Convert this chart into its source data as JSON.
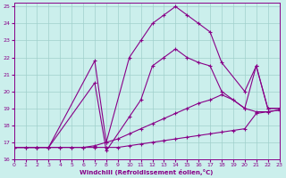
{
  "xlabel": "Windchill (Refroidissement éolien,°C)",
  "background_color": "#cbefec",
  "grid_color": "#a0d0cc",
  "line_color": "#880088",
  "xlim": [
    0,
    23
  ],
  "ylim": [
    16,
    25.2
  ],
  "xticks": [
    0,
    1,
    2,
    3,
    4,
    5,
    6,
    7,
    8,
    9,
    10,
    11,
    12,
    13,
    14,
    15,
    16,
    17,
    18,
    19,
    20,
    21,
    22,
    23
  ],
  "yticks": [
    16,
    17,
    18,
    19,
    20,
    21,
    22,
    23,
    24,
    25
  ],
  "series": [
    {
      "x": [
        0,
        1,
        2,
        3,
        4,
        5,
        6,
        7,
        8,
        9,
        10,
        11,
        12,
        13,
        14,
        15,
        16,
        17,
        18,
        19,
        20,
        21,
        22,
        23
      ],
      "y": [
        16.7,
        16.7,
        16.7,
        16.7,
        16.7,
        16.7,
        16.7,
        16.7,
        16.7,
        16.7,
        16.8,
        16.9,
        17.0,
        17.1,
        17.2,
        17.3,
        17.4,
        17.5,
        17.6,
        17.7,
        17.8,
        18.7,
        18.8,
        18.9
      ]
    },
    {
      "x": [
        0,
        1,
        2,
        3,
        4,
        5,
        6,
        7,
        8,
        9,
        10,
        11,
        12,
        13,
        14,
        15,
        16,
        17,
        18,
        19,
        20,
        21,
        22,
        23
      ],
      "y": [
        16.7,
        16.7,
        16.7,
        16.7,
        16.7,
        16.7,
        16.7,
        16.8,
        17.0,
        17.2,
        17.5,
        17.8,
        18.1,
        18.4,
        18.7,
        19.0,
        19.3,
        19.5,
        19.8,
        19.5,
        19.0,
        18.8,
        18.8,
        18.9
      ]
    },
    {
      "x": [
        0,
        2,
        3,
        7,
        8,
        10,
        11,
        12,
        13,
        14,
        15,
        16,
        17,
        18,
        20,
        21,
        22,
        23
      ],
      "y": [
        16.7,
        16.7,
        16.7,
        21.8,
        17.0,
        22.0,
        23.0,
        24.0,
        24.5,
        25.0,
        24.5,
        24.0,
        23.5,
        21.7,
        20.0,
        21.5,
        19.0,
        19.0
      ]
    },
    {
      "x": [
        0,
        2,
        3,
        7,
        8,
        10,
        11,
        12,
        13,
        14,
        15,
        16,
        17,
        18,
        20,
        21,
        22,
        23
      ],
      "y": [
        16.7,
        16.7,
        16.7,
        20.5,
        16.5,
        18.5,
        19.5,
        21.5,
        22.0,
        22.5,
        22.0,
        21.7,
        21.5,
        20.0,
        19.0,
        21.5,
        19.0,
        19.0
      ]
    }
  ]
}
